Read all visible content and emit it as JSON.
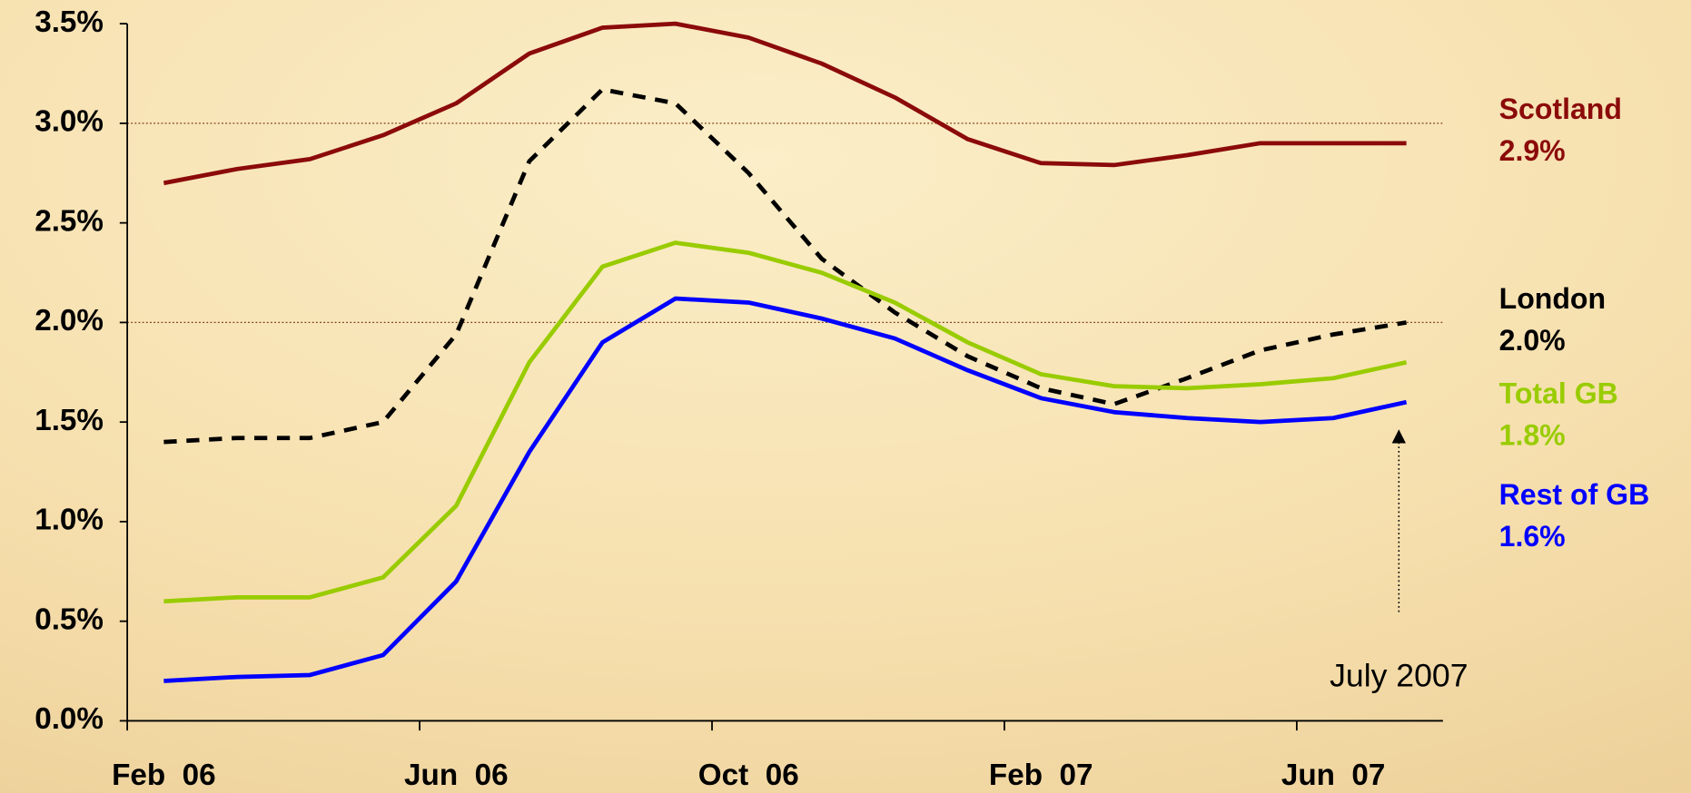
{
  "chart_data": {
    "type": "line",
    "categories": [
      "Feb  06",
      null,
      null,
      null,
      "Jun  06",
      null,
      null,
      null,
      "Oct  06",
      null,
      null,
      null,
      "Feb  07",
      null,
      null,
      null,
      "Jun  07",
      null
    ],
    "series": [
      {
        "name": "Scotland",
        "color": "#8b0a0a",
        "dash": false,
        "values": [
          2.7,
          2.77,
          2.82,
          2.94,
          3.1,
          3.35,
          3.48,
          3.5,
          3.43,
          3.3,
          3.13,
          2.92,
          2.8,
          2.79,
          2.84,
          2.9,
          2.9,
          2.9
        ],
        "value_labels": [
          null,
          null,
          null,
          null,
          null,
          null,
          null,
          null,
          null,
          null,
          null,
          null,
          null,
          null,
          null,
          null,
          null,
          "2.9%"
        ]
      },
      {
        "name": "London",
        "color": "#000000",
        "dash": true,
        "values": [
          1.4,
          1.42,
          1.42,
          1.5,
          1.94,
          2.81,
          3.17,
          3.1,
          2.75,
          2.32,
          2.05,
          1.83,
          1.67,
          1.59,
          1.72,
          1.86,
          1.94,
          2.0
        ],
        "value_labels": [
          null,
          null,
          null,
          null,
          null,
          null,
          null,
          null,
          null,
          null,
          null,
          null,
          null,
          null,
          null,
          null,
          null,
          "2.0%"
        ]
      },
      {
        "name": "Total GB",
        "color": "#99cc00",
        "dash": false,
        "values": [
          0.6,
          0.62,
          0.62,
          0.72,
          1.08,
          1.8,
          2.28,
          2.4,
          2.35,
          2.25,
          2.1,
          1.9,
          1.74,
          1.68,
          1.67,
          1.69,
          1.72,
          1.8
        ],
        "value_labels": [
          null,
          null,
          null,
          null,
          null,
          null,
          null,
          null,
          null,
          null,
          null,
          null,
          null,
          null,
          null,
          null,
          null,
          "1.8%"
        ]
      },
      {
        "name": "Rest of GB",
        "color": "#0000ff",
        "dash": false,
        "values": [
          0.2,
          0.22,
          0.23,
          0.33,
          0.7,
          1.35,
          1.9,
          2.12,
          2.1,
          2.02,
          1.92,
          1.76,
          1.62,
          1.55,
          1.52,
          1.5,
          1.52,
          1.6
        ],
        "value_labels": [
          null,
          null,
          null,
          null,
          null,
          null,
          null,
          null,
          null,
          null,
          null,
          null,
          null,
          null,
          null,
          null,
          null,
          "1.6%"
        ]
      }
    ],
    "ylim": [
      0,
      3.5
    ],
    "yticks": [
      {
        "value": 0,
        "label": "0.0%"
      },
      {
        "value": 0.5,
        "label": "0.5%"
      },
      {
        "value": 1,
        "label": "1.0%"
      },
      {
        "value": 1.5,
        "label": "1.5%"
      },
      {
        "value": 2,
        "label": "2.0%"
      },
      {
        "value": 2.5,
        "label": "2.5%"
      },
      {
        "value": 3,
        "label": "3.0%"
      },
      {
        "value": 3.5,
        "label": "3.5%"
      }
    ],
    "reference_lines": [
      2,
      3
    ],
    "annotation": {
      "text": "July 2007",
      "category_index": 17
    }
  }
}
